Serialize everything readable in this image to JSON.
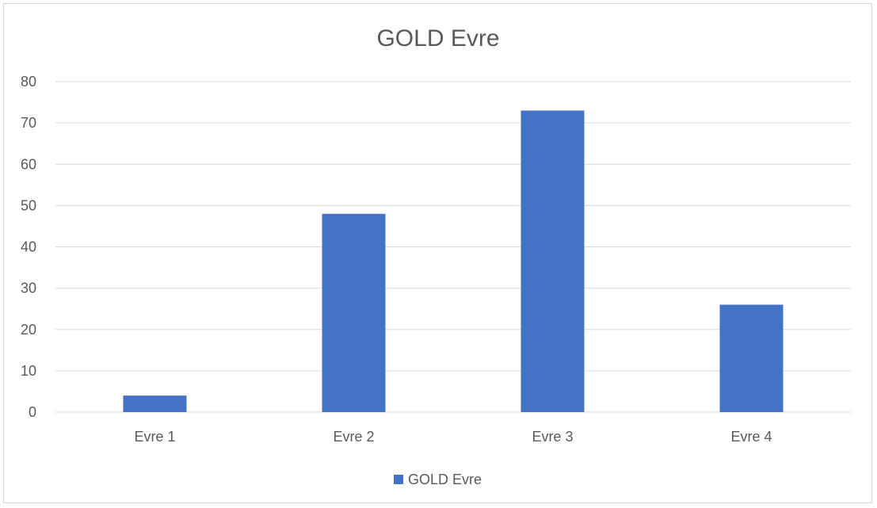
{
  "chart_data": {
    "type": "bar",
    "title": "GOLD Evre",
    "categories": [
      "Evre 1",
      "Evre 2",
      "Evre 3",
      "Evre 4"
    ],
    "series": [
      {
        "name": "GOLD Evre",
        "values": [
          4,
          48,
          73,
          26
        ],
        "color": "#4472C4"
      }
    ],
    "ylim": [
      0,
      80
    ],
    "yticks": [
      0,
      10,
      20,
      30,
      40,
      50,
      60,
      70,
      80
    ],
    "grid": true,
    "legend_position": "bottom"
  }
}
